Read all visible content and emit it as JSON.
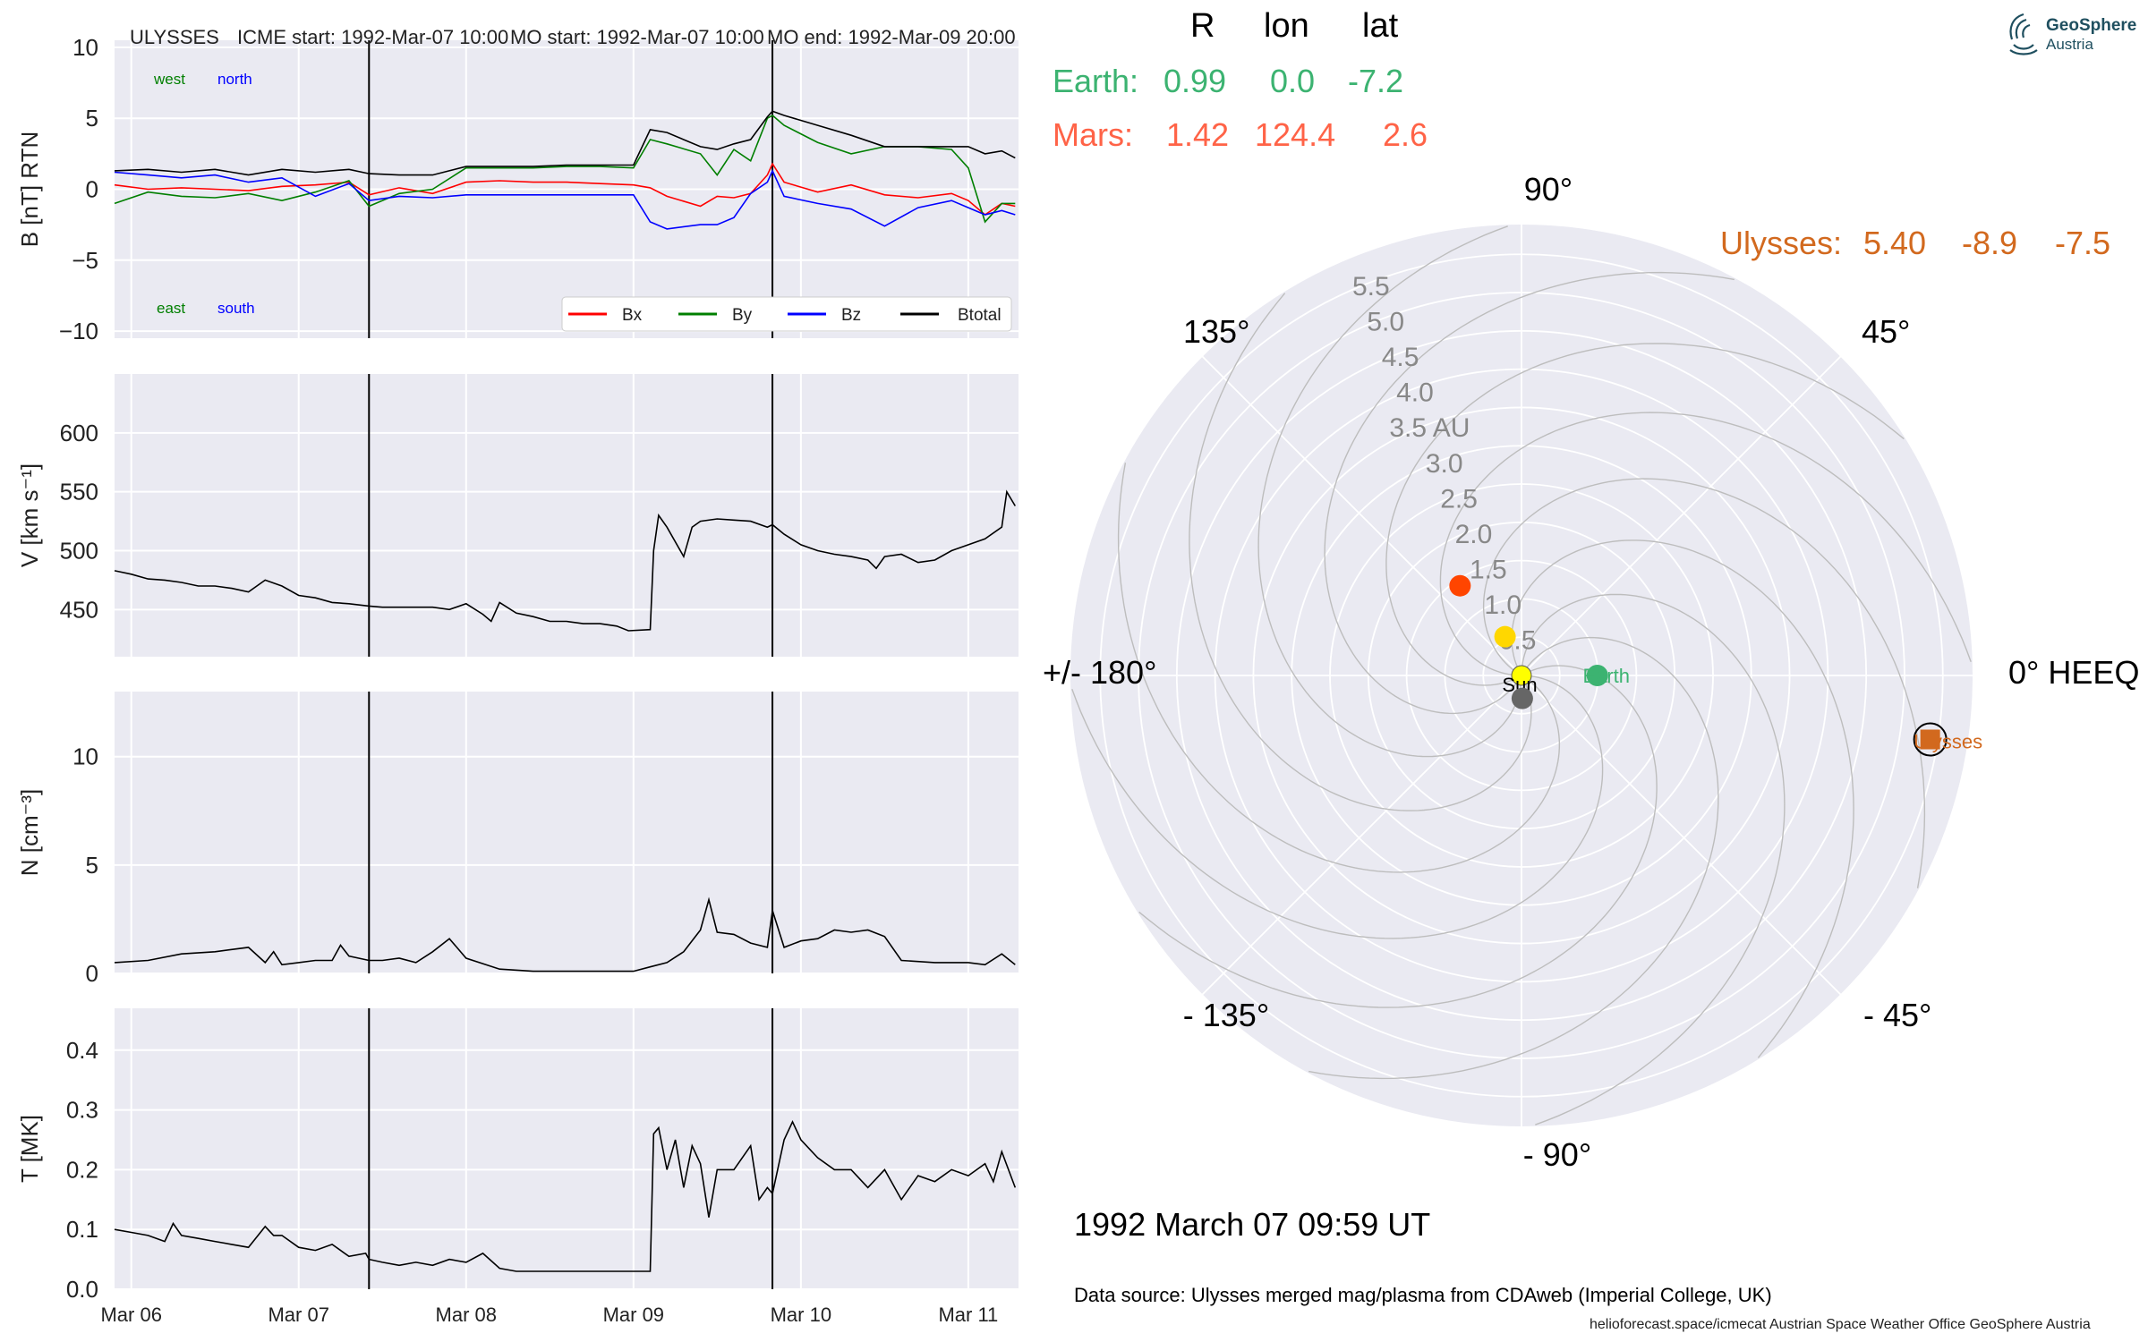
{
  "header": {
    "spacecraft": "ULYSSES",
    "icme_start": "ICME start: 1992-Mar-07 10:00",
    "mo_start": "MO start: 1992-Mar-07 10:00",
    "mo_end": "MO end: 1992-Mar-09 20:00"
  },
  "logo": {
    "line1": "GeoSphere",
    "line2": "Austria"
  },
  "positions_table": {
    "columns": [
      "R",
      "lon",
      "lat"
    ],
    "rows": [
      {
        "name": "Earth:",
        "R": "0.99",
        "lon": "0.0",
        "lat": "-7.2",
        "color": "#3cb371"
      },
      {
        "name": "Mars:",
        "R": "1.42",
        "lon": "124.4",
        "lat": "2.6",
        "color": "#ff6347"
      },
      {
        "name": "Ulysses:",
        "R": "5.40",
        "lon": "-8.9",
        "lat": "-7.5",
        "color": "#d2691e"
      }
    ]
  },
  "date_text": "1992 March 07  09:59 UT",
  "data_source": "Data source: Ulysses merged mag/plasma from CDAweb (Imperial College, UK)",
  "footer": "helioforecast.space/icmecat   Austrian Space Weather Office   GeoSphere Austria",
  "colors": {
    "plot_bg": "#eaeaf2",
    "bx": "#ff0000",
    "by": "#007f00",
    "bz": "#0000ff",
    "btotal": "#000000",
    "ulysses": "#d2691e",
    "mars": "#ff4500",
    "earth": "#3cb371",
    "sun": "#ffff00"
  },
  "chart_data": [
    {
      "type": "line",
      "panel": "magnetic field",
      "ylabel": "B [nT] RTN",
      "ylim": [
        -10.5,
        10.5
      ],
      "yticks": [
        "10",
        "5",
        "0",
        "−5",
        "−10"
      ],
      "xticks": [
        "Mar 06",
        "Mar 07",
        "Mar 08",
        "Mar 09",
        "Mar 10",
        "Mar 11"
      ],
      "xlim_days": [
        5.9,
        11.3
      ],
      "event_lines_days": [
        7.42,
        9.83
      ],
      "annotations": {
        "west": "west",
        "north": "north",
        "east": "east",
        "south": "south"
      },
      "legend": {
        "placement": "lower-right",
        "entries": [
          "Bx",
          "By",
          "Bz",
          "Btotal"
        ]
      },
      "x_days": [
        5.9,
        6.1,
        6.3,
        6.5,
        6.7,
        6.9,
        7.1,
        7.3,
        7.42,
        7.6,
        7.8,
        8.0,
        8.2,
        8.4,
        8.6,
        8.8,
        9.0,
        9.1,
        9.2,
        9.4,
        9.5,
        9.6,
        9.7,
        9.8,
        9.83,
        9.9,
        10.1,
        10.3,
        10.5,
        10.7,
        10.9,
        11.0,
        11.1,
        11.2,
        11.28
      ],
      "series": [
        {
          "name": "Bx",
          "values": [
            0.3,
            0.0,
            0.1,
            0.0,
            -0.1,
            0.2,
            0.3,
            0.5,
            -0.4,
            0.1,
            -0.3,
            0.5,
            0.6,
            0.5,
            0.5,
            0.4,
            0.3,
            0.1,
            -0.5,
            -1.2,
            -0.5,
            -0.6,
            -0.3,
            1.0,
            1.8,
            0.5,
            -0.2,
            0.3,
            -0.4,
            -0.6,
            -0.3,
            -0.8,
            -1.8,
            -1.0,
            -1.2
          ]
        },
        {
          "name": "By",
          "values": [
            -1.0,
            -0.2,
            -0.5,
            -0.6,
            -0.3,
            -0.8,
            -0.2,
            0.6,
            -1.2,
            -0.3,
            0.0,
            1.5,
            1.5,
            1.5,
            1.6,
            1.6,
            1.5,
            3.5,
            3.2,
            2.5,
            1.0,
            2.8,
            2.0,
            5.0,
            5.2,
            4.5,
            3.3,
            2.5,
            3.0,
            3.0,
            2.8,
            1.5,
            -2.3,
            -1.0,
            -1.0
          ]
        },
        {
          "name": "Bz",
          "values": [
            1.2,
            1.0,
            0.8,
            1.0,
            0.5,
            0.8,
            -0.5,
            0.4,
            -0.8,
            -0.5,
            -0.6,
            -0.4,
            -0.4,
            -0.4,
            -0.4,
            -0.4,
            -0.4,
            -2.3,
            -2.8,
            -2.5,
            -2.5,
            -2.0,
            -0.3,
            0.5,
            1.3,
            -0.5,
            -1.0,
            -1.4,
            -2.6,
            -1.3,
            -0.8,
            -1.3,
            -1.8,
            -1.5,
            -1.8
          ]
        },
        {
          "name": "Btotal",
          "values": [
            1.3,
            1.4,
            1.2,
            1.4,
            1.0,
            1.4,
            1.2,
            1.4,
            1.1,
            1.0,
            1.0,
            1.6,
            1.6,
            1.6,
            1.7,
            1.7,
            1.7,
            4.2,
            4.0,
            3.0,
            2.8,
            3.2,
            3.5,
            5.1,
            5.5,
            5.2,
            4.5,
            3.8,
            3.0,
            3.0,
            3.0,
            3.0,
            2.5,
            2.7,
            2.2
          ]
        }
      ]
    },
    {
      "type": "line",
      "panel": "speed",
      "ylabel": "V [km s⁻¹]",
      "ylim": [
        410,
        650
      ],
      "yticks": [
        "600",
        "550",
        "500",
        "450"
      ],
      "x_days": [
        5.9,
        6.0,
        6.1,
        6.2,
        6.3,
        6.4,
        6.5,
        6.6,
        6.7,
        6.8,
        6.9,
        7.0,
        7.1,
        7.2,
        7.3,
        7.42,
        7.5,
        7.6,
        7.8,
        7.9,
        8.0,
        8.1,
        8.15,
        8.2,
        8.3,
        8.4,
        8.5,
        8.6,
        8.7,
        8.8,
        8.9,
        8.97,
        9.1,
        9.12,
        9.15,
        9.2,
        9.3,
        9.35,
        9.4,
        9.5,
        9.6,
        9.7,
        9.8,
        9.83,
        9.9,
        10.0,
        10.1,
        10.2,
        10.3,
        10.4,
        10.45,
        10.5,
        10.6,
        10.7,
        10.8,
        10.9,
        11.0,
        11.1,
        11.2,
        11.23,
        11.28
      ],
      "series": [
        {
          "name": "V",
          "values": [
            483,
            480,
            476,
            475,
            473,
            470,
            470,
            468,
            465,
            475,
            470,
            462,
            460,
            456,
            455,
            453,
            452,
            452,
            452,
            450,
            455,
            446,
            440,
            456,
            447,
            444,
            440,
            440,
            438,
            438,
            436,
            432,
            433,
            500,
            530,
            520,
            495,
            520,
            525,
            527,
            526,
            525,
            520,
            522,
            514,
            505,
            500,
            497,
            495,
            492,
            485,
            495,
            497,
            490,
            492,
            500,
            505,
            510,
            520,
            550,
            538
          ]
        }
      ]
    },
    {
      "type": "line",
      "panel": "density",
      "ylabel": "N [cm⁻³]",
      "ylim": [
        0,
        13
      ],
      "yticks": [
        "10",
        "5",
        "0"
      ],
      "x_days": [
        5.9,
        6.1,
        6.3,
        6.5,
        6.7,
        6.8,
        6.85,
        6.9,
        7.0,
        7.1,
        7.2,
        7.25,
        7.3,
        7.42,
        7.5,
        7.6,
        7.7,
        7.8,
        7.9,
        8.0,
        8.2,
        8.4,
        8.6,
        8.8,
        9.0,
        9.1,
        9.2,
        9.3,
        9.4,
        9.45,
        9.5,
        9.6,
        9.7,
        9.8,
        9.83,
        9.9,
        10.0,
        10.1,
        10.2,
        10.3,
        10.4,
        10.5,
        10.6,
        10.8,
        11.0,
        11.1,
        11.2,
        11.28
      ],
      "series": [
        {
          "name": "N",
          "values": [
            0.5,
            0.6,
            0.9,
            1.0,
            1.2,
            0.5,
            1.0,
            0.4,
            0.5,
            0.6,
            0.6,
            1.3,
            0.8,
            0.6,
            0.6,
            0.7,
            0.5,
            1.0,
            1.6,
            0.7,
            0.2,
            0.1,
            0.1,
            0.1,
            0.1,
            0.3,
            0.5,
            1.0,
            2.0,
            3.4,
            1.9,
            1.8,
            1.4,
            1.2,
            2.9,
            1.2,
            1.5,
            1.6,
            2.0,
            1.9,
            2.0,
            1.7,
            0.6,
            0.5,
            0.5,
            0.4,
            0.9,
            0.4
          ]
        }
      ]
    },
    {
      "type": "line",
      "panel": "temperature",
      "ylabel": "T [MK]",
      "ylim": [
        0,
        0.47
      ],
      "yticks": [
        "0.4",
        "0.3",
        "0.2",
        "0.1",
        "0.0"
      ],
      "x_days": [
        5.9,
        6.0,
        6.1,
        6.2,
        6.25,
        6.3,
        6.4,
        6.5,
        6.6,
        6.7,
        6.8,
        6.85,
        6.9,
        7.0,
        7.1,
        7.2,
        7.3,
        7.4,
        7.42,
        7.5,
        7.6,
        7.7,
        7.8,
        7.9,
        8.0,
        8.1,
        8.2,
        8.3,
        8.4,
        8.6,
        8.8,
        9.0,
        9.1,
        9.12,
        9.15,
        9.2,
        9.25,
        9.3,
        9.35,
        9.4,
        9.45,
        9.5,
        9.6,
        9.7,
        9.75,
        9.8,
        9.83,
        9.9,
        9.95,
        10.0,
        10.1,
        10.2,
        10.3,
        10.4,
        10.5,
        10.6,
        10.7,
        10.8,
        10.9,
        11.0,
        11.1,
        11.15,
        11.2,
        11.28
      ],
      "series": [
        {
          "name": "T",
          "values": [
            0.1,
            0.095,
            0.09,
            0.08,
            0.11,
            0.09,
            0.085,
            0.08,
            0.075,
            0.07,
            0.105,
            0.09,
            0.09,
            0.07,
            0.065,
            0.075,
            0.055,
            0.06,
            0.05,
            0.045,
            0.04,
            0.045,
            0.04,
            0.05,
            0.045,
            0.06,
            0.035,
            0.03,
            0.03,
            0.03,
            0.03,
            0.03,
            0.03,
            0.26,
            0.27,
            0.2,
            0.25,
            0.17,
            0.24,
            0.21,
            0.12,
            0.2,
            0.2,
            0.24,
            0.15,
            0.17,
            0.16,
            0.25,
            0.28,
            0.25,
            0.22,
            0.2,
            0.2,
            0.17,
            0.2,
            0.15,
            0.19,
            0.18,
            0.2,
            0.19,
            0.21,
            0.18,
            0.23,
            0.17
          ]
        }
      ]
    },
    {
      "type": "scatter",
      "panel": "orbit polar view",
      "angle_labels": [
        "90°",
        "45°",
        "0° HEEQ",
        "- 45°",
        "- 90°",
        "- 135°",
        "+/- 180°",
        "135°"
      ],
      "radial_labels": [
        "0.5",
        "1.0",
        "1.5",
        "2.0",
        "2.5",
        "3.0",
        "3.5 AU",
        "4.0",
        "4.5",
        "5.0",
        "5.5"
      ],
      "rlim_au": [
        0,
        5.9
      ],
      "points": [
        {
          "name": "Sun",
          "r_au": 0.0,
          "lon_deg": 0,
          "color": "#ffff00"
        },
        {
          "name": "Earth",
          "r_au": 0.99,
          "lon_deg": 0.0,
          "color": "#3cb371"
        },
        {
          "name": "Mars",
          "r_au": 1.42,
          "lon_deg": 124.4,
          "color": "#ff4500"
        },
        {
          "name": "Ulysses",
          "r_au": 5.4,
          "lon_deg": -8.9,
          "color": "#d2691e"
        },
        {
          "name": "",
          "r_au": 0.55,
          "lon_deg": 113,
          "color": "#ffd700"
        },
        {
          "name": "",
          "r_au": 0.3,
          "lon_deg": -88,
          "color": "#666666"
        }
      ]
    }
  ]
}
